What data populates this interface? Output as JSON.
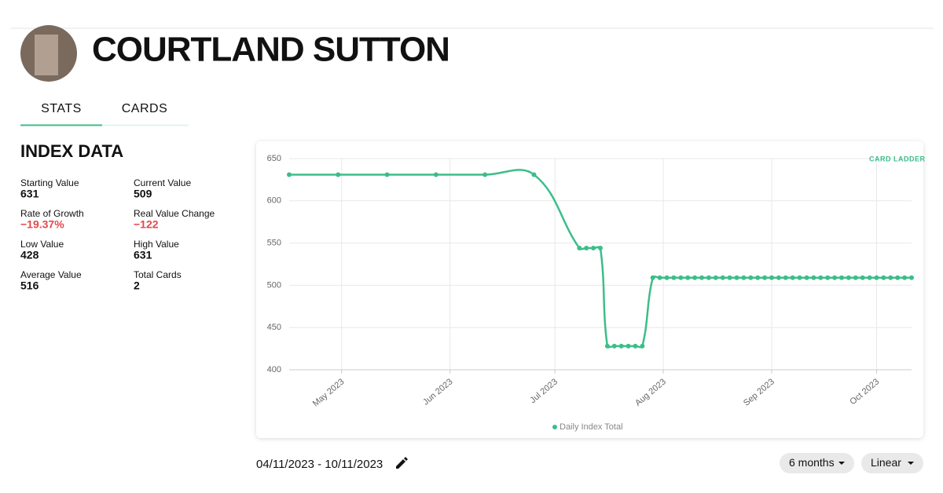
{
  "header": {
    "title": "COURTLAND SUTTON"
  },
  "tabs": [
    "STATS",
    "CARDS"
  ],
  "index_data": {
    "title": "INDEX DATA",
    "stats": [
      {
        "label": "Starting Value",
        "value": 631
      },
      {
        "label": "Current Value",
        "value": 509
      },
      {
        "label": "Rate of Growth",
        "value": "−19.37%",
        "color": "#e5484d"
      },
      {
        "label": "Real Value Change",
        "value": "−122",
        "color": "#e5484d"
      },
      {
        "label": "Low Value",
        "value": 428
      },
      {
        "label": "High Value",
        "value": 631
      },
      {
        "label": "Average Value",
        "value": 516
      },
      {
        "label": "Total Cards",
        "value": 2
      }
    ]
  },
  "chart_data": {
    "type": "line",
    "logo": "CARD LADDER",
    "x": [
      "2023-04-16",
      "2023-04-30",
      "2023-05-14",
      "2023-05-28",
      "2023-06-11",
      "2023-06-25",
      "2023-07-08",
      "2023-07-10",
      "2023-07-12",
      "2023-07-14",
      "2023-07-16",
      "2023-07-18",
      "2023-07-20",
      "2023-07-22",
      "2023-07-24",
      "2023-07-26",
      "2023-07-29",
      "2023-07-31",
      "2023-08-02",
      "2023-08-04",
      "2023-08-06",
      "2023-08-08",
      "2023-08-10",
      "2023-08-12",
      "2023-08-14",
      "2023-08-16",
      "2023-08-18",
      "2023-08-20",
      "2023-08-22",
      "2023-08-24",
      "2023-08-26",
      "2023-08-28",
      "2023-08-30",
      "2023-09-01",
      "2023-09-03",
      "2023-09-05",
      "2023-09-07",
      "2023-09-09",
      "2023-09-11",
      "2023-09-13",
      "2023-09-15",
      "2023-09-17",
      "2023-09-19",
      "2023-09-21",
      "2023-09-23",
      "2023-09-25",
      "2023-09-27",
      "2023-09-29",
      "2023-10-01",
      "2023-10-03",
      "2023-10-05",
      "2023-10-07",
      "2023-10-09",
      "2023-10-11"
    ],
    "series": [
      {
        "name": "Daily Index Total",
        "color": "#3dbd8a",
        "values": [
          631,
          631,
          631,
          631,
          631,
          631,
          544,
          544,
          544,
          544,
          428,
          428,
          428,
          428,
          428,
          428,
          509,
          509,
          509,
          509,
          509,
          509,
          509,
          509,
          509,
          509,
          509,
          509,
          509,
          509,
          509,
          509,
          509,
          509,
          509,
          509,
          509,
          509,
          509,
          509,
          509,
          509,
          509,
          509,
          509,
          509,
          509,
          509,
          509,
          509,
          509,
          509,
          509,
          509
        ]
      }
    ],
    "xlim": [
      "2023-04-16",
      "2023-10-11"
    ],
    "xticks": [
      {
        "value": "2023-05-01",
        "label": "May 2023"
      },
      {
        "value": "2023-06-01",
        "label": "Jun 2023"
      },
      {
        "value": "2023-07-01",
        "label": "Jul 2023"
      },
      {
        "value": "2023-08-01",
        "label": "Aug 2023"
      },
      {
        "value": "2023-09-01",
        "label": "Sep 2023"
      },
      {
        "value": "2023-10-01",
        "label": "Oct 2023"
      }
    ],
    "ylim": [
      400,
      650
    ],
    "yticks": [
      400,
      450,
      500,
      550,
      600,
      650
    ],
    "grid": true,
    "legend": "bottom"
  },
  "footer": {
    "date_range": "04/11/2023 - 10/11/2023",
    "period": "6 months",
    "scale": "Linear"
  }
}
